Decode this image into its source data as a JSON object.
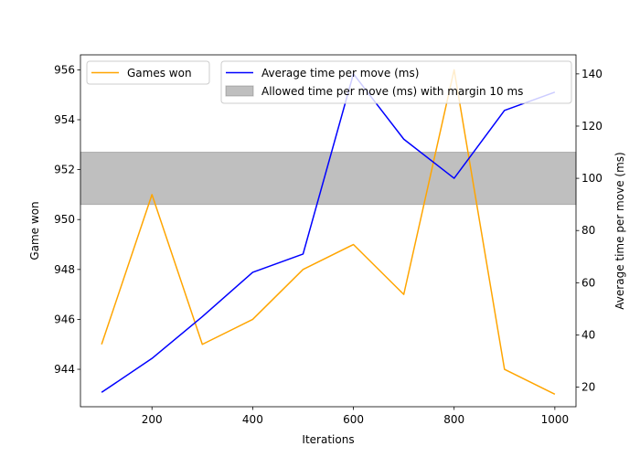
{
  "chart_data": {
    "type": "line",
    "x": [
      100,
      200,
      300,
      400,
      500,
      600,
      700,
      800,
      900,
      1000
    ],
    "xlabel": "Iterations",
    "xlim": [
      58,
      1042
    ],
    "xticks": [
      200,
      400,
      600,
      800,
      1000
    ],
    "left_axis": {
      "label": "Game won",
      "ylim": [
        942.5,
        956.6
      ],
      "ticks": [
        944,
        946,
        948,
        950,
        952,
        954,
        956
      ]
    },
    "right_axis": {
      "label": "Average time per move (ms)",
      "ylim": [
        12.5,
        147.3
      ],
      "ticks": [
        20,
        40,
        60,
        80,
        100,
        120,
        140
      ]
    },
    "series": [
      {
        "name": "Games won",
        "axis": "left",
        "color": "#ffa500",
        "values": [
          945,
          951,
          945,
          946,
          948,
          949,
          947,
          956,
          944,
          943
        ]
      },
      {
        "name": "Average time per move (ms)",
        "axis": "right",
        "color": "#0000ff",
        "values": [
          18,
          31,
          47,
          64,
          71,
          140,
          115,
          100,
          126,
          133
        ]
      }
    ],
    "band": {
      "name": "Allowed time per move (ms) with margin 10 ms",
      "axis": "right",
      "from": 90,
      "to": 110,
      "color": "#808080"
    },
    "legends": [
      {
        "placement": "upper-left",
        "entries": [
          "Games won"
        ]
      },
      {
        "placement": "upper-center",
        "entries": [
          "Average time per move (ms)",
          "Allowed time per move (ms) with margin 10 ms"
        ]
      }
    ],
    "grid": false
  }
}
